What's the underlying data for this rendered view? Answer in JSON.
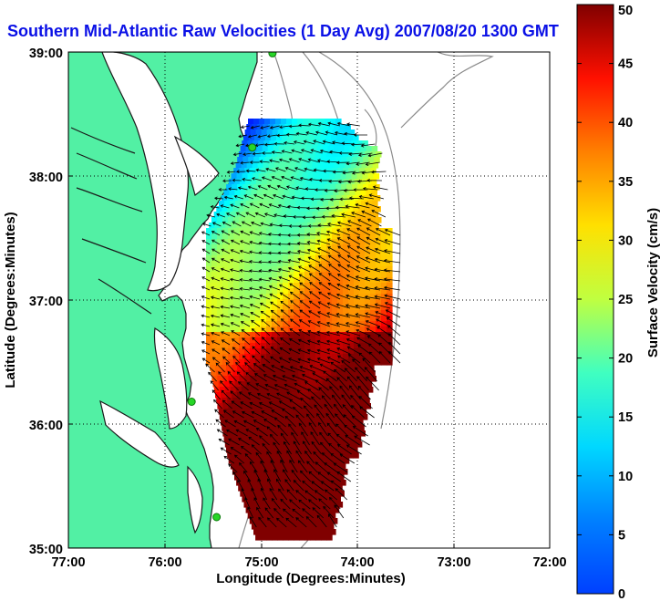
{
  "title": "Southern Mid-Atlantic Raw Velocities (1 Day Avg) 2007/08/20 1300 GMT",
  "colors": {
    "land": "#52f0a4",
    "coast": "#1a1a1a",
    "bathymetry": "#8a8a8a",
    "arrow": "#000000",
    "station": "#27d627",
    "title": "#0a10e6"
  },
  "chart_data": {
    "type": "heatmap",
    "xlabel": "Longitude (Degrees:Minutes)",
    "ylabel": "Latitude (Degrees:Minutes)",
    "x_ticks": [
      "77:00",
      "76:00",
      "75:00",
      "74:00",
      "73:00",
      "72:00"
    ],
    "y_ticks": [
      "39:00",
      "38:00",
      "37:00",
      "36:00",
      "35:00"
    ],
    "xlim": [
      -77,
      -72
    ],
    "ylim": [
      35,
      39
    ],
    "grid": "dotted",
    "colorbar": {
      "label": "Surface Velocity (cm/s)",
      "range": [
        0,
        50
      ],
      "ticks": [
        "0",
        "5",
        "10",
        "15",
        "20",
        "25",
        "30",
        "35",
        "40",
        "45",
        "50"
      ],
      "colormap": "jet"
    },
    "stations": [
      {
        "lon": -74.88,
        "lat": 38.99
      },
      {
        "lon": -75.09,
        "lat": 38.23
      },
      {
        "lon": -75.72,
        "lat": 36.18
      },
      {
        "lon": -75.46,
        "lat": 35.25
      }
    ]
  }
}
